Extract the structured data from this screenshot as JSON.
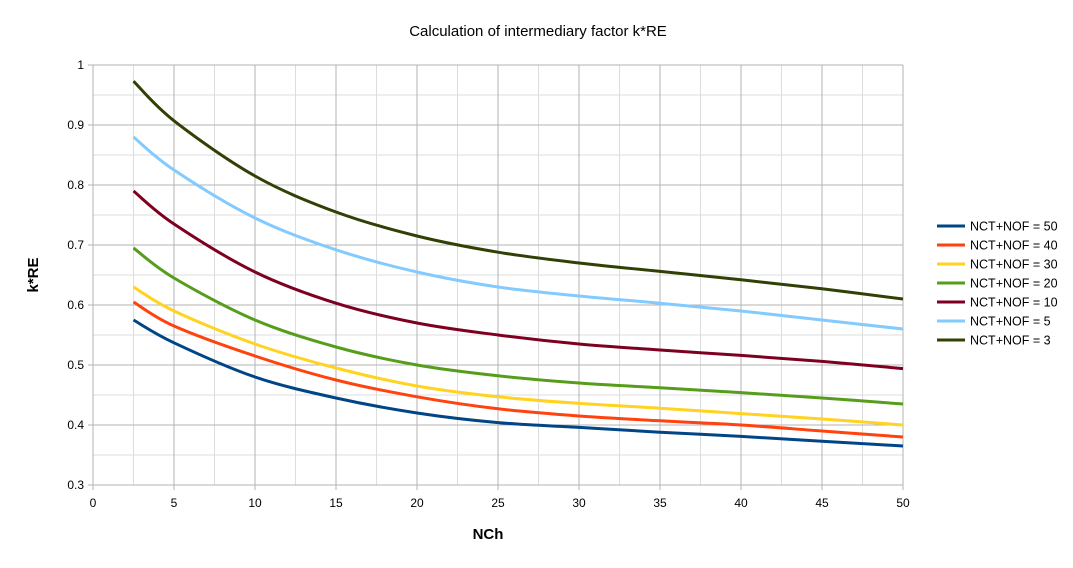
{
  "chart_data": {
    "type": "line",
    "title": "Calculation of intermediary factor k*RE",
    "xlabel": "NCh",
    "ylabel": "k*RE",
    "xlim": [
      0,
      50
    ],
    "ylim": [
      0.3,
      1
    ],
    "x_ticks": [
      "0",
      "5",
      "10",
      "15",
      "20",
      "25",
      "30",
      "35",
      "40",
      "45",
      "50"
    ],
    "y_ticks": [
      "0.3",
      "0.4",
      "0.5",
      "0.6",
      "0.7",
      "0.8",
      "0.9",
      "1"
    ],
    "grid": true,
    "legend_position": "right",
    "x": [
      2.5,
      5,
      10,
      15,
      20,
      25,
      30,
      35,
      40,
      45,
      50
    ],
    "series": [
      {
        "name": "NCT+NOF = 50",
        "color": "#004586",
        "values": [
          0.575,
          0.537,
          0.48,
          0.445,
          0.42,
          0.404,
          0.396,
          0.388,
          0.381,
          0.373,
          0.365
        ]
      },
      {
        "name": "NCT+NOF = 40",
        "color": "#ff420e",
        "values": [
          0.605,
          0.565,
          0.515,
          0.475,
          0.447,
          0.427,
          0.415,
          0.407,
          0.4,
          0.39,
          0.38
        ]
      },
      {
        "name": "NCT+NOF = 30",
        "color": "#ffd320",
        "values": [
          0.63,
          0.59,
          0.535,
          0.495,
          0.465,
          0.447,
          0.436,
          0.428,
          0.419,
          0.41,
          0.4
        ]
      },
      {
        "name": "NCT+NOF = 20",
        "color": "#579d1c",
        "values": [
          0.695,
          0.645,
          0.575,
          0.53,
          0.5,
          0.482,
          0.47,
          0.462,
          0.454,
          0.445,
          0.435
        ]
      },
      {
        "name": "NCT+NOF = 10",
        "color": "#7e0021",
        "values": [
          0.79,
          0.735,
          0.655,
          0.603,
          0.57,
          0.55,
          0.535,
          0.525,
          0.516,
          0.506,
          0.494
        ]
      },
      {
        "name": "NCT+NOF = 5",
        "color": "#83caff",
        "values": [
          0.88,
          0.825,
          0.745,
          0.692,
          0.655,
          0.63,
          0.615,
          0.603,
          0.59,
          0.575,
          0.56
        ]
      },
      {
        "name": "NCT+NOF = 3",
        "color": "#314004",
        "values": [
          0.973,
          0.907,
          0.815,
          0.755,
          0.715,
          0.688,
          0.67,
          0.656,
          0.642,
          0.627,
          0.61
        ]
      }
    ]
  }
}
